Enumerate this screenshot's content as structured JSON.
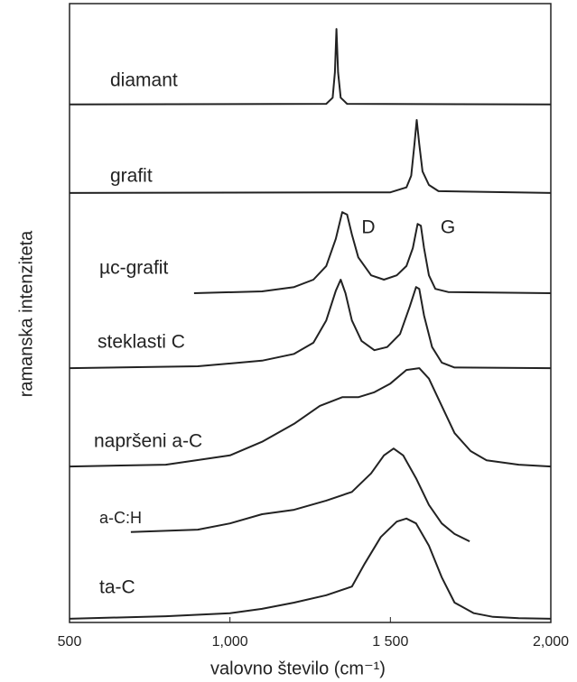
{
  "chart_data": {
    "type": "line",
    "xlabel": "valovno število (cm⁻¹)",
    "ylabel": "ramanska intenziteta",
    "xlim": [
      500,
      2000
    ],
    "xticks": [
      500,
      {
        "value": 1000,
        "label": "1,000"
      },
      {
        "value": 1500,
        "label": "1 500"
      },
      {
        "value": 2000,
        "label": "2,000"
      }
    ],
    "ylim": [
      0,
      100
    ],
    "annotations": [
      "D",
      "G"
    ],
    "series": [
      {
        "name": "diamant",
        "color": "#222222",
        "x": [
          500,
          1300,
          1320,
          1327,
          1332,
          1337,
          1345,
          1365,
          2000
        ],
        "values": [
          83.7,
          83.8,
          84.8,
          88.9,
          95.9,
          88.9,
          84.8,
          83.8,
          83.7
        ]
      },
      {
        "name": "grafit",
        "color": "#222222",
        "x": [
          500,
          1500,
          1550,
          1565,
          1575,
          1582,
          1590,
          1600,
          1620,
          1650,
          2000
        ],
        "values": [
          69.4,
          69.5,
          70.3,
          72.2,
          77.3,
          81.2,
          77.3,
          72.9,
          70.7,
          69.7,
          69.4
        ]
      },
      {
        "name": "µc-grafit",
        "color": "#222222",
        "x": [
          888,
          1100,
          1200,
          1260,
          1300,
          1330,
          1350,
          1365,
          1380,
          1400,
          1440,
          1480,
          1520,
          1550,
          1570,
          1585,
          1595,
          1605,
          1620,
          1640,
          1680,
          2000
        ],
        "values": [
          53.2,
          53.5,
          54.2,
          55.4,
          57.6,
          62.0,
          66.3,
          65.9,
          62.7,
          59.0,
          56.1,
          55.4,
          56.1,
          57.6,
          60.5,
          64.4,
          64.1,
          60.5,
          56.1,
          53.9,
          53.4,
          53.2
        ]
      },
      {
        "name": "steklasti C",
        "color": "#222222",
        "x": [
          500,
          900,
          1100,
          1200,
          1260,
          1300,
          1330,
          1345,
          1360,
          1380,
          1410,
          1450,
          1490,
          1530,
          1560,
          1580,
          1590,
          1605,
          1630,
          1660,
          1700,
          2000
        ],
        "values": [
          41.1,
          41.4,
          42.3,
          43.4,
          45.2,
          48.8,
          53.6,
          55.4,
          53.2,
          48.8,
          45.5,
          44.0,
          44.5,
          46.6,
          51.0,
          54.2,
          53.9,
          49.6,
          44.5,
          42.0,
          41.2,
          41.1
        ]
      },
      {
        "name": "napršeni a-C",
        "color": "#222222",
        "x": [
          500,
          800,
          1000,
          1100,
          1200,
          1280,
          1350,
          1400,
          1450,
          1500,
          1550,
          1590,
          1620,
          1660,
          1700,
          1750,
          1800,
          1900,
          2000
        ],
        "values": [
          25.2,
          25.5,
          27.0,
          29.2,
          32.1,
          35.0,
          36.4,
          36.4,
          37.2,
          38.6,
          40.8,
          41.1,
          39.4,
          35.0,
          30.6,
          27.7,
          26.2,
          25.5,
          25.2
        ]
      },
      {
        "name": "a-C:H",
        "color": "#222222",
        "x": [
          691,
          900,
          1000,
          1100,
          1200,
          1300,
          1380,
          1440,
          1480,
          1510,
          1540,
          1580,
          1620,
          1660,
          1700,
          1747
        ],
        "values": [
          14.6,
          15.0,
          16.0,
          17.5,
          18.2,
          19.7,
          21.1,
          24.1,
          27.0,
          28.1,
          27.0,
          23.3,
          19.0,
          16.0,
          14.3,
          13.1
        ]
      },
      {
        "name": "ta-C",
        "color": "#222222",
        "x": [
          500,
          800,
          1000,
          1100,
          1200,
          1300,
          1380,
          1420,
          1470,
          1520,
          1550,
          1580,
          1620,
          1660,
          1700,
          1760,
          1820,
          1900,
          2000
        ],
        "values": [
          0.6,
          1.0,
          1.5,
          2.2,
          3.2,
          4.4,
          5.8,
          9.5,
          13.8,
          16.3,
          16.8,
          16.0,
          12.4,
          7.3,
          3.2,
          1.5,
          0.9,
          0.7,
          0.6
        ]
      }
    ]
  }
}
